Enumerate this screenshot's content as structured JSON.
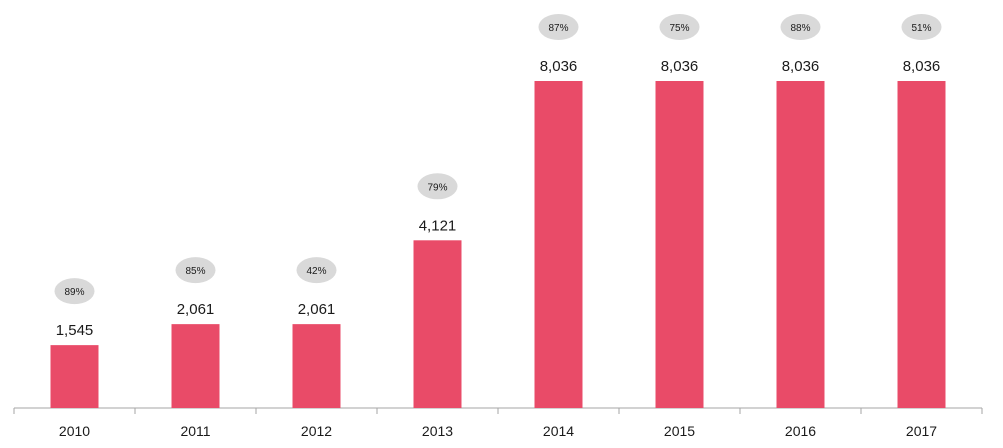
{
  "chart_data": {
    "type": "bar",
    "categories": [
      "2010",
      "2011",
      "2012",
      "2013",
      "2014",
      "2015",
      "2016",
      "2017"
    ],
    "values": [
      1545,
      2061,
      2061,
      4121,
      8036,
      8036,
      8036,
      8036
    ],
    "value_labels": [
      "1,545",
      "2,061",
      "2,061",
      "4,121",
      "8,036",
      "8,036",
      "8,036",
      "8,036"
    ],
    "percent_labels": [
      "89%",
      "85%",
      "42%",
      "79%",
      "87%",
      "75%",
      "88%",
      "51%"
    ],
    "title": "",
    "xlabel": "",
    "ylabel": "",
    "ylim": [
      0,
      8036
    ],
    "grid": false,
    "legend": "none"
  },
  "colors": {
    "bar": "#e94b68",
    "bubble": "#d9d9d9",
    "axis": "#a6a6a6",
    "text": "#1a1a1a"
  }
}
